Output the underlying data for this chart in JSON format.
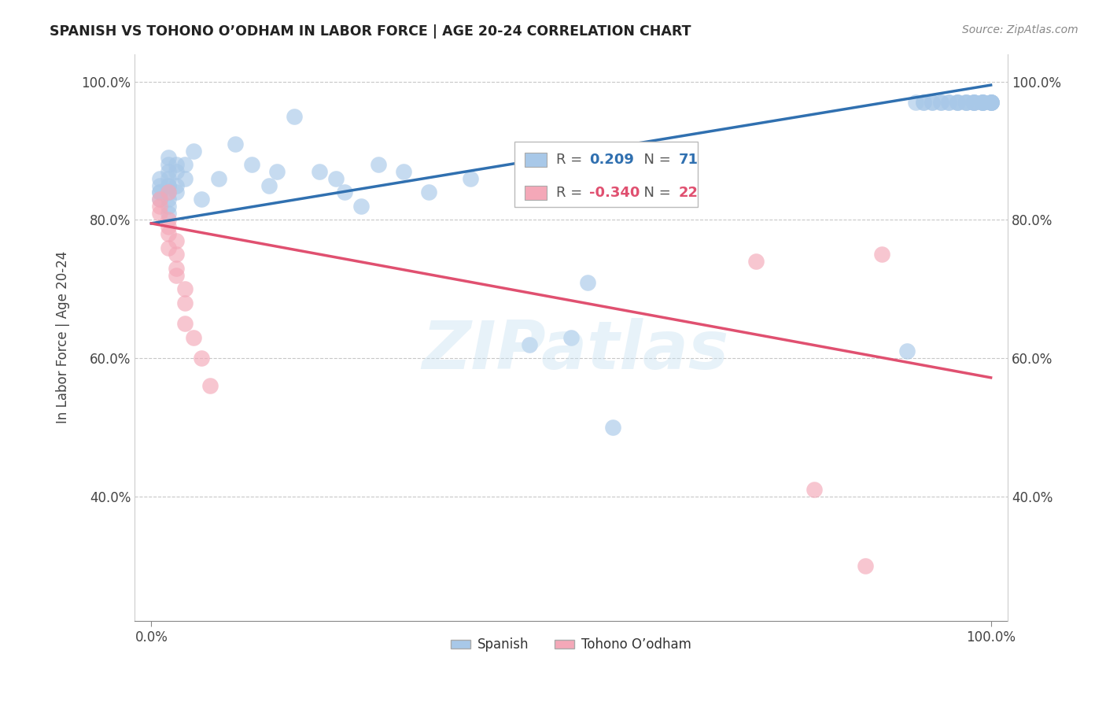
{
  "title": "SPANISH VS TOHONO O’ODHAM IN LABOR FORCE | AGE 20-24 CORRELATION CHART",
  "source": "Source: ZipAtlas.com",
  "ylabel": "In Labor Force | Age 20-24",
  "legend_label_spanish": "Spanish",
  "legend_label_tohono": "Tohono O’odham",
  "R_spanish": 0.209,
  "N_spanish": 71,
  "R_tohono": -0.34,
  "N_tohono": 22,
  "blue_color": "#a8c8e8",
  "pink_color": "#f4a8b8",
  "blue_line_color": "#3070b0",
  "pink_line_color": "#e05070",
  "xlim": [
    -0.02,
    1.02
  ],
  "ylim": [
    0.22,
    1.04
  ],
  "ytick_vals": [
    0.4,
    0.6,
    0.8,
    1.0
  ],
  "ytick_labels": [
    "40.0%",
    "60.0%",
    "80.0%",
    "100.0%"
  ],
  "xtick_vals": [
    0.0,
    1.0
  ],
  "xtick_labels": [
    "0.0%",
    "100.0%"
  ],
  "grid_color": "#c8c8c8",
  "background_color": "#ffffff",
  "blue_trend_start_y": 0.795,
  "blue_trend_end_y": 0.995,
  "pink_trend_start_y": 0.795,
  "pink_trend_end_y": 0.572,
  "spanish_x": [
    0.01,
    0.01,
    0.01,
    0.01,
    0.01,
    0.02,
    0.02,
    0.02,
    0.02,
    0.02,
    0.02,
    0.02,
    0.02,
    0.02,
    0.02,
    0.03,
    0.03,
    0.03,
    0.03,
    0.04,
    0.04,
    0.05,
    0.06,
    0.08,
    0.1,
    0.12,
    0.14,
    0.15,
    0.17,
    0.2,
    0.22,
    0.23,
    0.25,
    0.27,
    0.3,
    0.33,
    0.38,
    0.45,
    0.5,
    0.52,
    0.55,
    0.9,
    0.91,
    0.92,
    0.92,
    0.93,
    0.93,
    0.94,
    0.94,
    0.95,
    0.95,
    0.96,
    0.96,
    0.96,
    0.97,
    0.97,
    0.97,
    0.98,
    0.98,
    0.98,
    0.98,
    0.99,
    0.99,
    0.99,
    0.99,
    0.99,
    1.0,
    1.0,
    1.0,
    1.0,
    1.0
  ],
  "spanish_y": [
    0.83,
    0.84,
    0.84,
    0.85,
    0.86,
    0.81,
    0.82,
    0.83,
    0.84,
    0.85,
    0.85,
    0.86,
    0.87,
    0.88,
    0.89,
    0.84,
    0.85,
    0.87,
    0.88,
    0.86,
    0.88,
    0.9,
    0.83,
    0.86,
    0.91,
    0.88,
    0.85,
    0.87,
    0.95,
    0.87,
    0.86,
    0.84,
    0.82,
    0.88,
    0.87,
    0.84,
    0.86,
    0.62,
    0.63,
    0.71,
    0.5,
    0.61,
    0.97,
    0.97,
    0.97,
    0.97,
    0.97,
    0.97,
    0.97,
    0.97,
    0.97,
    0.97,
    0.97,
    0.97,
    0.97,
    0.97,
    0.97,
    0.97,
    0.97,
    0.97,
    0.97,
    0.97,
    0.97,
    0.97,
    0.97,
    0.97,
    0.97,
    0.97,
    0.97,
    0.97,
    0.97
  ],
  "tohono_x": [
    0.01,
    0.01,
    0.01,
    0.02,
    0.02,
    0.02,
    0.02,
    0.02,
    0.03,
    0.03,
    0.03,
    0.03,
    0.04,
    0.04,
    0.04,
    0.05,
    0.06,
    0.07,
    0.72,
    0.79,
    0.85,
    0.87
  ],
  "tohono_y": [
    0.83,
    0.82,
    0.81,
    0.84,
    0.8,
    0.79,
    0.78,
    0.76,
    0.77,
    0.75,
    0.73,
    0.72,
    0.7,
    0.68,
    0.65,
    0.63,
    0.6,
    0.56,
    0.74,
    0.41,
    0.3,
    0.75
  ]
}
